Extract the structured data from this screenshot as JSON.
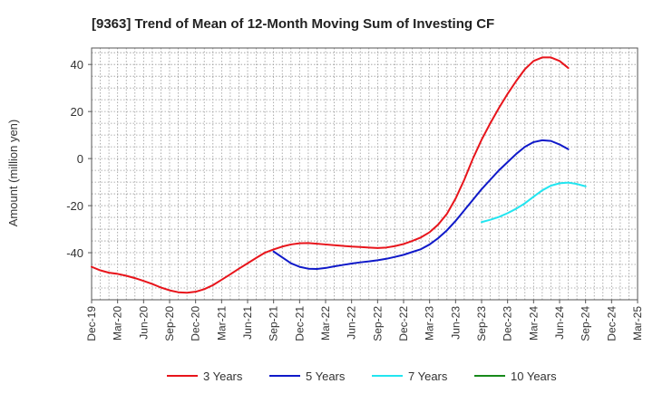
{
  "chart_data": {
    "type": "line",
    "title": "[9363]  Trend of Mean of 12-Month Moving Sum of Investing CF",
    "xlabel": "",
    "ylabel": "Amount (million yen)",
    "ylim": [
      -60,
      47
    ],
    "yticks": [
      40,
      20,
      0,
      -20,
      -40
    ],
    "x_tick_labels": [
      "Dec-19",
      "Mar-20",
      "Jun-20",
      "Sep-20",
      "Dec-20",
      "Mar-21",
      "Jun-21",
      "Sep-21",
      "Dec-21",
      "Mar-22",
      "Jun-22",
      "Sep-22",
      "Dec-22",
      "Mar-23",
      "Jun-23",
      "Sep-23",
      "Dec-23",
      "Mar-24",
      "Jun-24",
      "Sep-24",
      "Dec-24",
      "Mar-25"
    ],
    "x_index_range": [
      0,
      63
    ],
    "grid": true,
    "legend_position": "bottom",
    "series": [
      {
        "name": "3 Years",
        "color": "#e8141b",
        "start_index": 0,
        "values": [
          -46.0,
          -47.5,
          -48.5,
          -49.0,
          -49.8,
          -50.8,
          -52.0,
          -53.3,
          -54.8,
          -56.0,
          -56.8,
          -57.0,
          -56.6,
          -55.5,
          -53.8,
          -51.5,
          -49.2,
          -46.8,
          -44.5,
          -42.2,
          -40.0,
          -38.6,
          -37.4,
          -36.5,
          -36.0,
          -35.9,
          -36.2,
          -36.5,
          -36.8,
          -37.1,
          -37.4,
          -37.6,
          -37.8,
          -38.0,
          -37.8,
          -37.2,
          -36.3,
          -35.0,
          -33.5,
          -31.3,
          -28.0,
          -23.5,
          -17.0,
          -9.0,
          0.0,
          8.0,
          15.0,
          21.5,
          27.5,
          33.0,
          38.0,
          41.5,
          43.0,
          43.0,
          41.5,
          38.5
        ]
      },
      {
        "name": "5 Years",
        "color": "#0f19c9",
        "start_index": 21,
        "values": [
          -39.5,
          -42.0,
          -44.5,
          -46.0,
          -46.8,
          -46.9,
          -46.5,
          -45.8,
          -45.2,
          -44.6,
          -44.1,
          -43.7,
          -43.2,
          -42.6,
          -41.8,
          -40.9,
          -39.7,
          -38.5,
          -36.5,
          -33.8,
          -30.5,
          -26.5,
          -22.0,
          -17.5,
          -13.0,
          -9.0,
          -5.0,
          -1.5,
          2.0,
          5.0,
          7.0,
          7.8,
          7.5,
          6.0,
          4.0
        ]
      },
      {
        "name": "7 Years",
        "color": "#22e5f0",
        "start_index": 45,
        "values": [
          -27.0,
          -26.0,
          -24.8,
          -23.2,
          -21.3,
          -19.0,
          -16.2,
          -13.5,
          -11.5,
          -10.5,
          -10.2,
          -10.8,
          -11.8
        ]
      },
      {
        "name": "10 Years",
        "color": "#17891a",
        "start_index": 0,
        "values": []
      }
    ]
  }
}
